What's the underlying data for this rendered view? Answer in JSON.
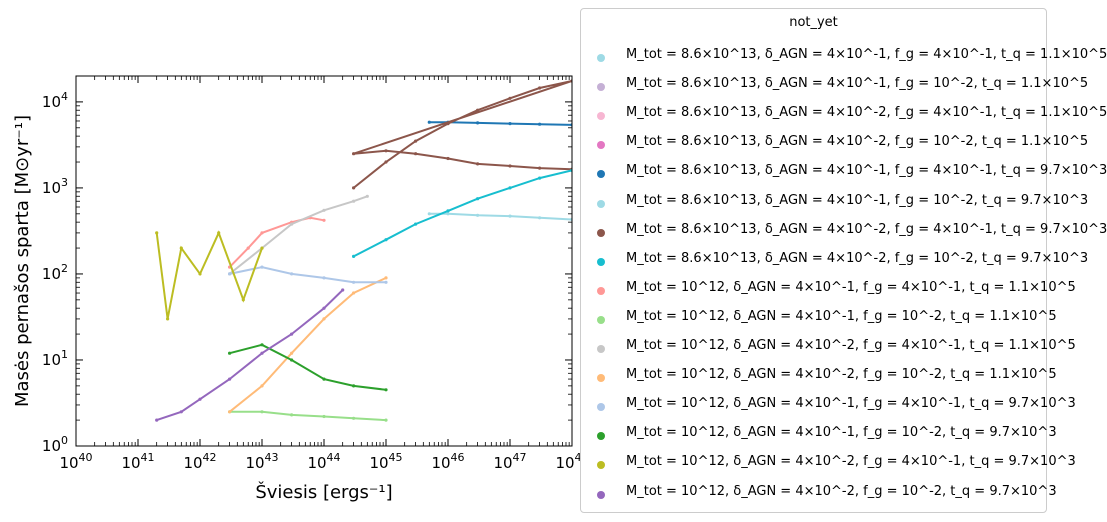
{
  "chart_data": {
    "type": "scatter",
    "xlabel": "Šviesis [ergs⁻¹]",
    "ylabel": "Masės pernašos sparta [M⊙yr⁻¹]",
    "x_scale": "log",
    "y_scale": "log",
    "xlim": [
      1e+40,
      1e+48
    ],
    "ylim": [
      1,
      20000
    ],
    "x_ticks": [
      "10^40",
      "10^41",
      "10^42",
      "10^43",
      "10^44",
      "10^45",
      "10^46",
      "10^47",
      "10^48"
    ],
    "y_ticks": [
      "10^0",
      "10^1",
      "10^2",
      "10^3",
      "10^4"
    ],
    "legend_title": "not_yet",
    "legend_position": "outside-right",
    "series": [
      {
        "name": "M_tot = 8.6×10^13, δ_AGN = 4×10^-1, f_g = 4×10^-1, t_q = 1.1×10^5",
        "color": "#9edae5",
        "points": []
      },
      {
        "name": "M_tot = 8.6×10^13, δ_AGN = 4×10^-1, f_g = 10^-2, t_q = 1.1×10^5",
        "color": "#c5b0d5",
        "points": []
      },
      {
        "name": "M_tot = 8.6×10^13, δ_AGN = 4×10^-2, f_g = 4×10^-1, t_q = 1.1×10^5",
        "color": "#f7b6d2",
        "points": []
      },
      {
        "name": "M_tot = 8.6×10^13, δ_AGN = 4×10^-2, f_g = 10^-2, t_q = 1.1×10^5",
        "color": "#e377c2",
        "points": []
      },
      {
        "name": "M_tot = 8.6×10^13, δ_AGN = 4×10^-1, f_g = 4×10^-1, t_q = 9.7×10^3",
        "color": "#1f77b4",
        "points": [
          [
            5e+45,
            5800
          ],
          [
            1e+46,
            5800
          ],
          [
            3e+46,
            5700
          ],
          [
            1e+47,
            5600
          ],
          [
            3e+47,
            5500
          ],
          [
            1e+48,
            5400
          ]
        ]
      },
      {
        "name": "M_tot = 8.6×10^13, δ_AGN = 4×10^-1, f_g = 10^-2, t_q = 9.7×10^3",
        "color": "#9edae5",
        "points": [
          [
            5e+45,
            500
          ],
          [
            1e+46,
            500
          ],
          [
            3e+46,
            480
          ],
          [
            1e+47,
            470
          ],
          [
            3e+47,
            450
          ],
          [
            1e+48,
            430
          ]
        ]
      },
      {
        "name": "M_tot = 8.6×10^13, δ_AGN = 4×10^-2, f_g = 4×10^-1, t_q = 9.7×10^3",
        "color": "#8c564b",
        "points": [
          [
            3e+44,
            1000
          ],
          [
            1e+45,
            2000
          ],
          [
            3e+45,
            3500
          ],
          [
            1e+46,
            5600
          ],
          [
            3e+46,
            8000
          ],
          [
            1e+47,
            11000
          ],
          [
            3e+47,
            14500
          ],
          [
            1e+48,
            17500
          ],
          [
            3e+44,
            2500
          ],
          [
            1e+45,
            2700
          ],
          [
            3e+45,
            2500
          ],
          [
            1e+46,
            2200
          ],
          [
            3e+46,
            1900
          ],
          [
            1e+47,
            1800
          ],
          [
            3e+47,
            1700
          ],
          [
            1e+48,
            1650
          ]
        ]
      },
      {
        "name": "M_tot = 8.6×10^13, δ_AGN = 4×10^-2, f_g = 10^-2, t_q = 9.7×10^3",
        "color": "#17becf",
        "points": [
          [
            3e+44,
            160
          ],
          [
            1e+45,
            250
          ],
          [
            3e+45,
            380
          ],
          [
            1e+46,
            540
          ],
          [
            3e+46,
            750
          ],
          [
            1e+47,
            1000
          ],
          [
            3e+47,
            1300
          ],
          [
            1e+48,
            1600
          ]
        ]
      },
      {
        "name": "M_tot = 10^12, δ_AGN = 4×10^-1, f_g = 4×10^-1, t_q = 1.1×10^5",
        "color": "#ff9896",
        "points": [
          [
            3e+42,
            120
          ],
          [
            6e+42,
            200
          ],
          [
            1e+43,
            300
          ],
          [
            3e+43,
            400
          ],
          [
            6e+43,
            450
          ],
          [
            1e+44,
            420
          ]
        ]
      },
      {
        "name": "M_tot = 10^12, δ_AGN = 4×10^-1, f_g = 10^-2, t_q = 1.1×10^5",
        "color": "#98df8a",
        "points": [
          [
            3e+42,
            2.5
          ],
          [
            1e+43,
            2.5
          ],
          [
            3e+43,
            2.3
          ],
          [
            1e+44,
            2.2
          ],
          [
            3e+44,
            2.1
          ],
          [
            1e+45,
            2.0
          ]
        ]
      },
      {
        "name": "M_tot = 10^12, δ_AGN = 4×10^-2, f_g = 4×10^-1, t_q = 1.1×10^5",
        "color": "#c7c7c7",
        "points": [
          [
            3e+42,
            100
          ],
          [
            1e+43,
            200
          ],
          [
            3e+43,
            380
          ],
          [
            1e+44,
            550
          ],
          [
            3e+44,
            700
          ],
          [
            5e+44,
            800
          ]
        ]
      },
      {
        "name": "M_tot = 10^12, δ_AGN = 4×10^-2, f_g = 10^-2, t_q = 1.1×10^5",
        "color": "#ffbb78",
        "points": [
          [
            3e+42,
            2.5
          ],
          [
            1e+43,
            5
          ],
          [
            3e+43,
            12
          ],
          [
            1e+44,
            30
          ],
          [
            3e+44,
            60
          ],
          [
            1e+45,
            90
          ]
        ]
      },
      {
        "name": "M_tot = 10^12, δ_AGN = 4×10^-1, f_g = 4×10^-1, t_q = 9.7×10^3",
        "color": "#aec7e8",
        "points": [
          [
            3e+42,
            100
          ],
          [
            1e+43,
            120
          ],
          [
            3e+43,
            100
          ],
          [
            1e+44,
            90
          ],
          [
            3e+44,
            80
          ],
          [
            1e+45,
            80
          ]
        ]
      },
      {
        "name": "M_tot = 10^12, δ_AGN = 4×10^-1, f_g = 10^-2, t_q = 9.7×10^3",
        "color": "#2ca02c",
        "points": [
          [
            3e+42,
            12
          ],
          [
            1e+43,
            15
          ],
          [
            3e+43,
            10
          ],
          [
            1e+44,
            6
          ],
          [
            3e+44,
            5
          ],
          [
            1e+45,
            4.5
          ]
        ]
      },
      {
        "name": "M_tot = 10^12, δ_AGN = 4×10^-2, f_g = 4×10^-1, t_q = 9.7×10^3",
        "color": "#bcbd22",
        "points": [
          [
            2e+41,
            300
          ],
          [
            3e+41,
            30
          ],
          [
            5e+41,
            200
          ],
          [
            1e+42,
            100
          ],
          [
            2e+42,
            300
          ],
          [
            5e+42,
            50
          ],
          [
            1e+43,
            200
          ]
        ]
      },
      {
        "name": "M_tot = 10^12, δ_AGN = 4×10^-2, f_g = 10^-2, t_q = 9.7×10^3",
        "color": "#9467bd",
        "points": [
          [
            2e+41,
            2
          ],
          [
            5e+41,
            2.5
          ],
          [
            1e+42,
            3.5
          ],
          [
            3e+42,
            6
          ],
          [
            1e+43,
            12
          ],
          [
            3e+43,
            20
          ],
          [
            1e+44,
            40
          ],
          [
            2e+44,
            65
          ]
        ]
      }
    ]
  },
  "legend": {
    "title": "not_yet",
    "entries": [
      {
        "label": "M_tot = 8.6×10^13, δ_AGN = 4×10^-1, f_g = 4×10^-1, t_q = 1.1×10^5",
        "color": "#9edae5"
      },
      {
        "label": "M_tot = 8.6×10^13, δ_AGN = 4×10^-1, f_g = 10^-2, t_q = 1.1×10^5",
        "color": "#c5b0d5"
      },
      {
        "label": "M_tot = 8.6×10^13, δ_AGN = 4×10^-2, f_g = 4×10^-1, t_q = 1.1×10^5",
        "color": "#f7b6d2"
      },
      {
        "label": "M_tot = 8.6×10^13, δ_AGN = 4×10^-2, f_g = 10^-2, t_q = 1.1×10^5",
        "color": "#e377c2"
      },
      {
        "label": "M_tot = 8.6×10^13, δ_AGN = 4×10^-1, f_g = 4×10^-1, t_q = 9.7×10^3",
        "color": "#1f77b4"
      },
      {
        "label": "M_tot = 8.6×10^13, δ_AGN = 4×10^-1, f_g = 10^-2, t_q = 9.7×10^3",
        "color": "#9edae5"
      },
      {
        "label": "M_tot = 8.6×10^13, δ_AGN = 4×10^-2, f_g = 4×10^-1, t_q = 9.7×10^3",
        "color": "#8c564b"
      },
      {
        "label": "M_tot = 8.6×10^13, δ_AGN = 4×10^-2, f_g = 10^-2, t_q = 9.7×10^3",
        "color": "#17becf"
      },
      {
        "label": "M_tot = 10^12, δ_AGN = 4×10^-1, f_g = 4×10^-1, t_q = 1.1×10^5",
        "color": "#ff9896"
      },
      {
        "label": "M_tot = 10^12, δ_AGN = 4×10^-1, f_g = 10^-2, t_q = 1.1×10^5",
        "color": "#98df8a"
      },
      {
        "label": "M_tot = 10^12, δ_AGN = 4×10^-2, f_g = 4×10^-1, t_q = 1.1×10^5",
        "color": "#c7c7c7"
      },
      {
        "label": "M_tot = 10^12, δ_AGN = 4×10^-2, f_g = 10^-2, t_q = 1.1×10^5",
        "color": "#ffbb78"
      },
      {
        "label": "M_tot = 10^12, δ_AGN = 4×10^-1, f_g = 4×10^-1, t_q = 9.7×10^3",
        "color": "#aec7e8"
      },
      {
        "label": "M_tot = 10^12, δ_AGN = 4×10^-1, f_g = 10^-2, t_q = 9.7×10^3",
        "color": "#2ca02c"
      },
      {
        "label": "M_tot = 10^12, δ_AGN = 4×10^-2, f_g = 4×10^-1, t_q = 9.7×10^3",
        "color": "#bcbd22"
      },
      {
        "label": "M_tot = 10^12, δ_AGN = 4×10^-2, f_g = 10^-2, t_q = 9.7×10^3",
        "color": "#9467bd"
      }
    ]
  }
}
